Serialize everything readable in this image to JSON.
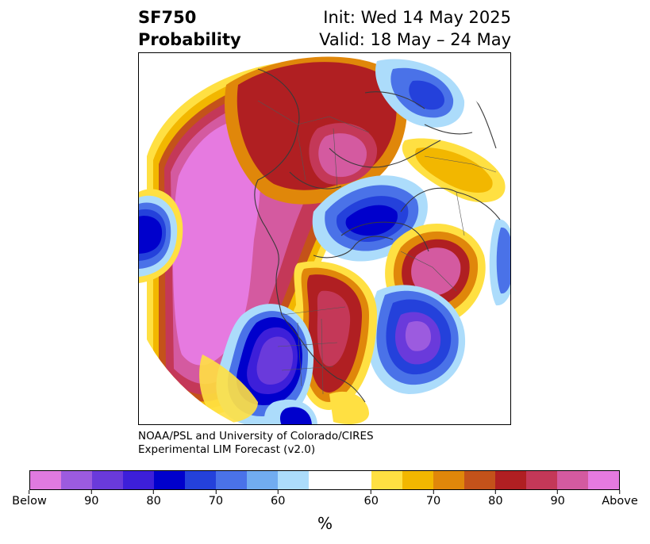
{
  "header": {
    "variable": "SF750",
    "product": "Probability",
    "init": "Init: Wed 14 May 2025",
    "valid": "Valid: 18 May – 24 May"
  },
  "credit": {
    "line1": "NOAA/PSL and University of Colorado/CIRES",
    "line2": "Experimental LIM Forecast (v2.0)"
  },
  "colorbar": {
    "unit": "%",
    "colors": [
      "#e07ae0",
      "#9c5bdf",
      "#6a3adb",
      "#3d1fd9",
      "#0000cc",
      "#2441db",
      "#4a72e8",
      "#71acf0",
      "#acdcfb",
      "#ffffff",
      "#ffe042",
      "#f2b700",
      "#e0870a",
      "#c4521a",
      "#b01f22",
      "#c43858",
      "#d45aa0",
      "#e67ae0"
    ],
    "tick_labels": [
      "Below",
      "90",
      "80",
      "70",
      "60",
      "60",
      "70",
      "80",
      "90",
      "Above"
    ]
  },
  "map": {
    "projection": "polar stereographic (north pole)",
    "features": [
      "coastlines",
      "country borders",
      "state borders"
    ]
  }
}
